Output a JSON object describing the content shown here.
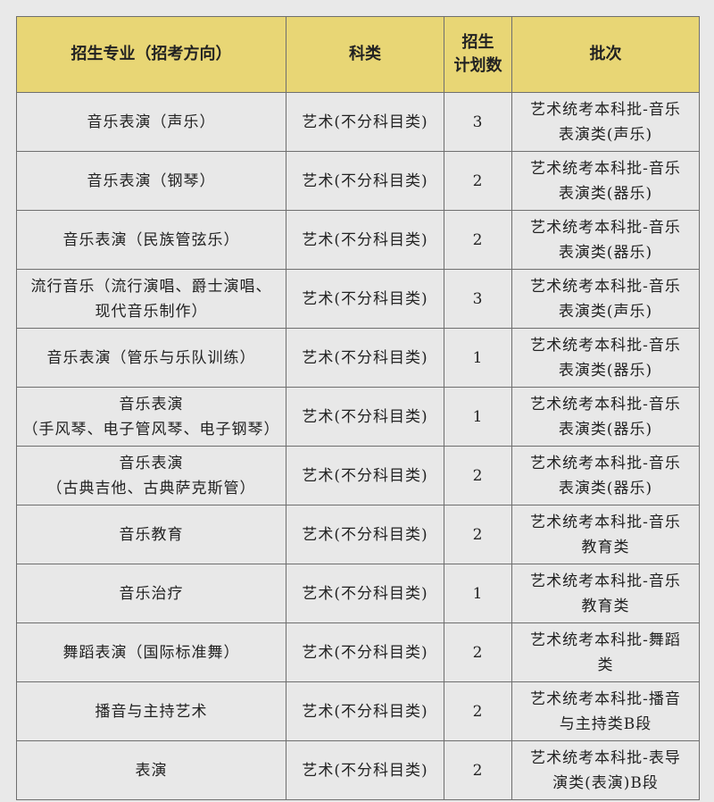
{
  "table": {
    "headers": [
      "招生专业（招考方向）",
      "科类",
      "招生计划数",
      "批次"
    ],
    "header_plan_lines": [
      "招生",
      "计划数"
    ],
    "rows": [
      {
        "major": [
          "音乐表演（声乐）"
        ],
        "category": "艺术(不分科目类)",
        "plan": "3",
        "batch": [
          "艺术统考本科批-音乐",
          "表演类(声乐)"
        ]
      },
      {
        "major": [
          "音乐表演（钢琴）"
        ],
        "category": "艺术(不分科目类)",
        "plan": "2",
        "batch": [
          "艺术统考本科批-音乐",
          "表演类(器乐)"
        ]
      },
      {
        "major": [
          "音乐表演（民族管弦乐）"
        ],
        "category": "艺术(不分科目类)",
        "plan": "2",
        "batch": [
          "艺术统考本科批-音乐",
          "表演类(器乐)"
        ]
      },
      {
        "major": [
          "流行音乐（流行演唱、爵士演唱、",
          "现代音乐制作）"
        ],
        "category": "艺术(不分科目类)",
        "plan": "3",
        "batch": [
          "艺术统考本科批-音乐",
          "表演类(声乐)"
        ]
      },
      {
        "major": [
          "音乐表演（管乐与乐队训练）"
        ],
        "category": "艺术(不分科目类)",
        "plan": "1",
        "batch": [
          "艺术统考本科批-音乐",
          "表演类(器乐)"
        ]
      },
      {
        "major": [
          "音乐表演",
          "（手风琴、电子管风琴、电子钢琴）"
        ],
        "category": "艺术(不分科目类)",
        "plan": "1",
        "batch": [
          "艺术统考本科批-音乐",
          "表演类(器乐)"
        ]
      },
      {
        "major": [
          "音乐表演",
          "（古典吉他、古典萨克斯管）"
        ],
        "category": "艺术(不分科目类)",
        "plan": "2",
        "batch": [
          "艺术统考本科批-音乐",
          "表演类(器乐)"
        ]
      },
      {
        "major": [
          "音乐教育"
        ],
        "category": "艺术(不分科目类)",
        "plan": "2",
        "batch": [
          "艺术统考本科批-音乐",
          "教育类"
        ]
      },
      {
        "major": [
          "音乐治疗"
        ],
        "category": "艺术(不分科目类)",
        "plan": "1",
        "batch": [
          "艺术统考本科批-音乐",
          "教育类"
        ]
      },
      {
        "major": [
          "舞蹈表演（国际标准舞）"
        ],
        "category": "艺术(不分科目类)",
        "plan": "2",
        "batch": [
          "艺术统考本科批-舞蹈",
          "类"
        ]
      },
      {
        "major": [
          "播音与主持艺术"
        ],
        "category": "艺术(不分科目类)",
        "plan": "2",
        "batch": [
          "艺术统考本科批-播音",
          "与主持类B段"
        ]
      },
      {
        "major": [
          "表演"
        ],
        "category": "艺术(不分科目类)",
        "plan": "2",
        "batch": [
          "艺术统考本科批-表导",
          "演类(表演)B段"
        ]
      }
    ]
  },
  "colors": {
    "header_bg": "#e8d675",
    "body_bg": "#e8e8e8",
    "border": "#6f6f6f"
  }
}
